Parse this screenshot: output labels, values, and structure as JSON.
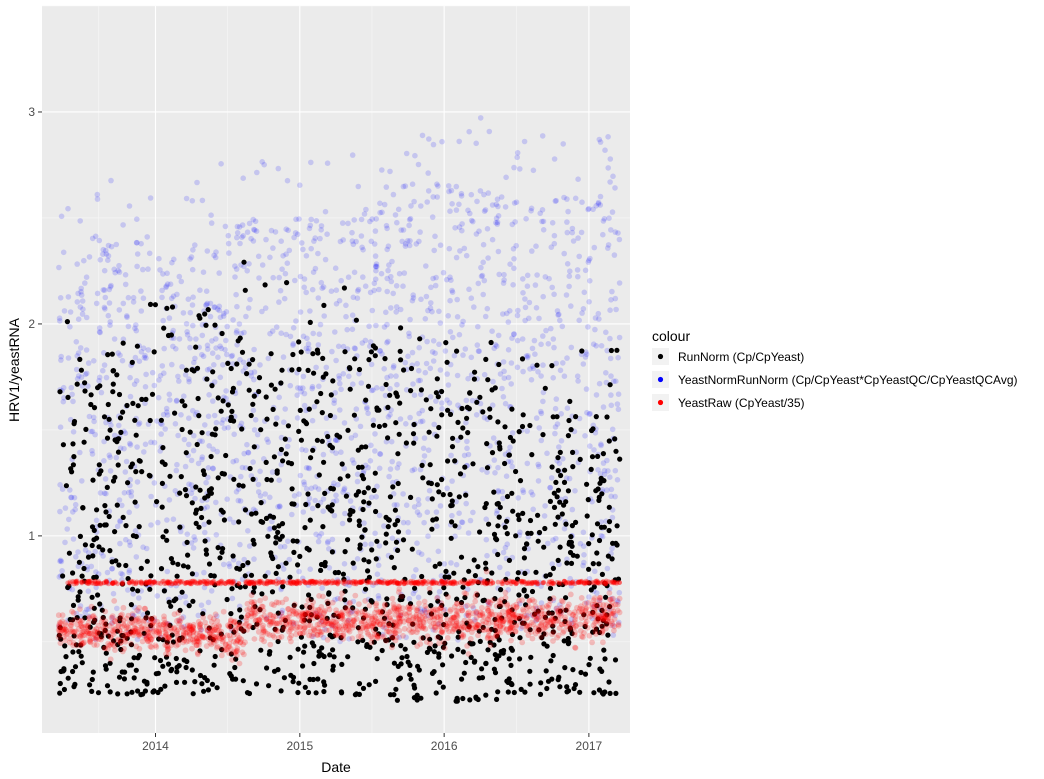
{
  "chart_data": {
    "type": "scatter",
    "title": "",
    "xlabel": "Date",
    "ylabel": "HRV1/yeastRNA",
    "x_scale": "date",
    "xlim": [
      "2013-03-20",
      "2017-04-15"
    ],
    "ylim": [
      0.07,
      3.5
    ],
    "x_ticks": [
      {
        "label": "2014",
        "value": "2014-01-01"
      },
      {
        "label": "2015",
        "value": "2015-01-01"
      },
      {
        "label": "2016",
        "value": "2016-01-01"
      },
      {
        "label": "2017",
        "value": "2017-01-01"
      }
    ],
    "y_ticks": [
      {
        "label": "1",
        "value": 1
      },
      {
        "label": "2",
        "value": 2
      },
      {
        "label": "3",
        "value": 3
      }
    ],
    "grid": true,
    "legend": {
      "title": "colour",
      "position": "right"
    },
    "series": [
      {
        "name": "RunNorm (Cp/CpYeast)",
        "color": "#000000",
        "segments": [
          {
            "start": "2013-05-01",
            "end": "2014-06-15",
            "y_low": 0.25,
            "y_high": 1.8
          },
          {
            "start": "2014-06-15",
            "end": "2014-08-15",
            "y_low": 0.3,
            "y_high": 2.0
          },
          {
            "start": "2014-08-15",
            "end": "2015-09-01",
            "y_low": 0.25,
            "y_high": 1.9
          },
          {
            "start": "2015-09-01",
            "end": "2016-05-15",
            "y_low": 0.22,
            "y_high": 1.7
          },
          {
            "start": "2016-05-15",
            "end": "2017-03-20",
            "y_low": 0.25,
            "y_high": 1.6
          }
        ]
      },
      {
        "name": "YeastNormRunNorm (Cp/CpYeast*CpYeastQC/CpYeastQCAvg)",
        "color": "#0000ff",
        "segments": [
          {
            "start": "2013-05-01",
            "end": "2014-06-15",
            "y_low": 0.5,
            "y_high": 2.4
          },
          {
            "start": "2014-06-15",
            "end": "2015-09-01",
            "y_low": 0.5,
            "y_high": 2.5
          },
          {
            "start": "2015-09-01",
            "end": "2016-05-15",
            "y_low": 0.5,
            "y_high": 2.7
          },
          {
            "start": "2016-05-15",
            "end": "2017-03-20",
            "y_low": 0.5,
            "y_high": 2.6
          }
        ]
      },
      {
        "name": "YeastRaw (CpYeast/35)",
        "color": "#ff0000",
        "reference_level": 0.78,
        "segments": [
          {
            "start": "2013-05-01",
            "end": "2014-06-15",
            "y_low": 0.45,
            "y_high": 0.65
          },
          {
            "start": "2014-06-15",
            "end": "2014-08-15",
            "y_low": 0.42,
            "y_high": 0.62
          },
          {
            "start": "2014-08-15",
            "end": "2015-09-01",
            "y_low": 0.5,
            "y_high": 0.7
          },
          {
            "start": "2015-09-01",
            "end": "2016-05-15",
            "y_low": 0.48,
            "y_high": 0.72
          },
          {
            "start": "2016-05-15",
            "end": "2017-03-20",
            "y_low": 0.5,
            "y_high": 0.72
          }
        ]
      }
    ]
  }
}
